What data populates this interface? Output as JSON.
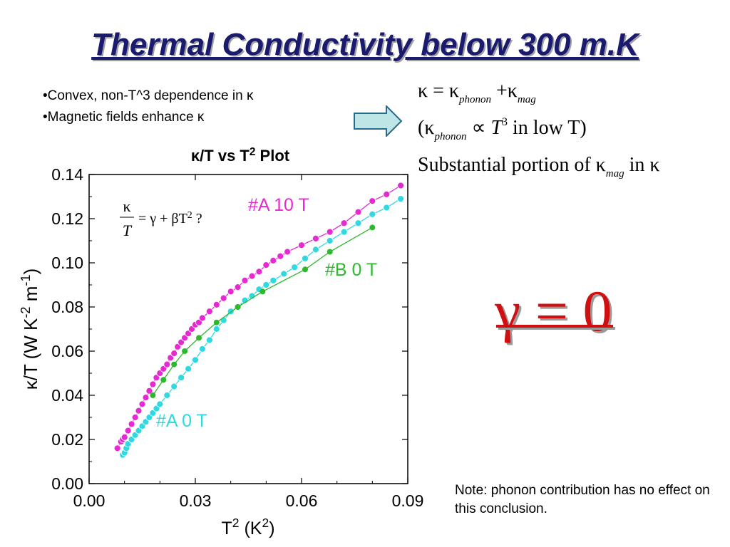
{
  "slide": {
    "title": "Thermal Conductivity below 300 m.K",
    "bullets": [
      "•Convex, non-T^3 dependence in κ",
      "•Magnetic fields enhance κ"
    ],
    "arrow_icon": "right-arrow-icon",
    "equations": {
      "line1": {
        "k": "κ",
        "eq": " = κ",
        "sub1": "phonon",
        "plus": " +κ",
        "sub2": "mag"
      },
      "line2": {
        "open": "(κ",
        "sub": "phonon",
        "prop": " ∝ ",
        "t": "T",
        "sup": "3",
        "rest": " in low T)"
      },
      "line3": {
        "text": "Substantial portion of κ",
        "sub": "mag",
        "rest": " in κ"
      }
    },
    "gamma_text": "γ = 0",
    "gamma_color": "#d01010",
    "note": "Note: phonon contribution has no effect on this conclusion."
  },
  "chart_data": {
    "type": "scatter",
    "title": "κ/T vs T",
    "title_sup": "2",
    "title_tail": " Plot",
    "xlabel": "T",
    "xlabel_sup1": "2",
    "xlabel_mid": " (K",
    "xlabel_sup2": "2",
    "xlabel_end": ")",
    "ylabel": "κ/T (W K",
    "ylabel_sup1": "-2",
    "ylabel_mid": " m",
    "ylabel_sup2": "-1",
    "ylabel_end": ")",
    "xlim": [
      0,
      0.09
    ],
    "ylim": [
      0,
      0.14
    ],
    "xticks": [
      "0.00",
      "0.03",
      "0.06",
      "0.09"
    ],
    "yticks": [
      "0.00",
      "0.02",
      "0.04",
      "0.06",
      "0.08",
      "0.10",
      "0.12",
      "0.14"
    ],
    "fit_formula": {
      "num": "κ",
      "den": "T",
      "rhs": "= γ + βT",
      "sup": "2",
      "tail": " ?"
    },
    "series": [
      {
        "name": "#A 10 T",
        "color": "#e62ad2",
        "x": [
          0.008,
          0.009,
          0.0095,
          0.01,
          0.011,
          0.012,
          0.013,
          0.014,
          0.015,
          0.016,
          0.017,
          0.018,
          0.019,
          0.02,
          0.021,
          0.022,
          0.023,
          0.024,
          0.025,
          0.026,
          0.027,
          0.028,
          0.029,
          0.03,
          0.031,
          0.032,
          0.034,
          0.036,
          0.038,
          0.04,
          0.042,
          0.044,
          0.046,
          0.048,
          0.05,
          0.052,
          0.054,
          0.056,
          0.06,
          0.064,
          0.068,
          0.072,
          0.076,
          0.08,
          0.084,
          0.088
        ],
        "y": [
          0.016,
          0.019,
          0.02,
          0.021,
          0.024,
          0.027,
          0.03,
          0.033,
          0.036,
          0.039,
          0.042,
          0.045,
          0.048,
          0.05,
          0.052,
          0.054,
          0.057,
          0.059,
          0.062,
          0.064,
          0.066,
          0.068,
          0.07,
          0.072,
          0.073,
          0.075,
          0.078,
          0.081,
          0.084,
          0.087,
          0.089,
          0.092,
          0.094,
          0.096,
          0.099,
          0.101,
          0.103,
          0.105,
          0.108,
          0.111,
          0.114,
          0.118,
          0.123,
          0.128,
          0.131,
          0.135
        ]
      },
      {
        "name": "#A 0 T",
        "color": "#30d8e0",
        "x": [
          0.0095,
          0.01,
          0.0105,
          0.011,
          0.012,
          0.013,
          0.014,
          0.015,
          0.016,
          0.017,
          0.018,
          0.019,
          0.02,
          0.022,
          0.024,
          0.026,
          0.028,
          0.03,
          0.032,
          0.034,
          0.036,
          0.038,
          0.04,
          0.042,
          0.044,
          0.046,
          0.048,
          0.05,
          0.052,
          0.055,
          0.058,
          0.061,
          0.064,
          0.068,
          0.072,
          0.076,
          0.08,
          0.084,
          0.088
        ],
        "y": [
          0.013,
          0.014,
          0.016,
          0.018,
          0.02,
          0.022,
          0.024,
          0.026,
          0.028,
          0.03,
          0.032,
          0.034,
          0.036,
          0.04,
          0.044,
          0.048,
          0.052,
          0.056,
          0.061,
          0.065,
          0.07,
          0.074,
          0.078,
          0.08,
          0.083,
          0.085,
          0.088,
          0.09,
          0.092,
          0.095,
          0.098,
          0.102,
          0.106,
          0.11,
          0.114,
          0.118,
          0.122,
          0.125,
          0.129
        ]
      },
      {
        "name": "#B 0 T",
        "color": "#2eb82e",
        "x": [
          0.018,
          0.021,
          0.024,
          0.027,
          0.031,
          0.036,
          0.042,
          0.049,
          0.061,
          0.068,
          0.08
        ],
        "y": [
          0.04,
          0.047,
          0.054,
          0.06,
          0.066,
          0.073,
          0.08,
          0.087,
          0.097,
          0.105,
          0.116
        ]
      }
    ]
  }
}
